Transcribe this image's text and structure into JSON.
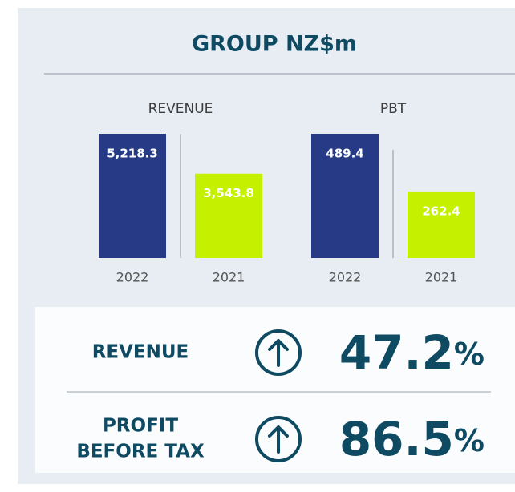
{
  "title": "GROUP NZ$m",
  "chart_data": [
    {
      "type": "bar",
      "title": "REVENUE",
      "categories": [
        "2022",
        "2021"
      ],
      "values": [
        5218.3,
        3543.8
      ],
      "value_labels": [
        "5,218.3",
        "3,543.8"
      ],
      "colors": [
        "#263a86",
        "#c5f000"
      ]
    },
    {
      "type": "bar",
      "title": "PBT",
      "categories": [
        "2022",
        "2021"
      ],
      "values": [
        489.4,
        262.4
      ],
      "colors": [
        "#263a86",
        "#c5f000"
      ]
    }
  ],
  "summary": [
    {
      "label": [
        "REVENUE"
      ],
      "change": 47.2,
      "unit": "%"
    },
    {
      "label": [
        "PROFIT",
        "BEFORE TAX"
      ],
      "change": 86.5,
      "unit": "%"
    }
  ]
}
